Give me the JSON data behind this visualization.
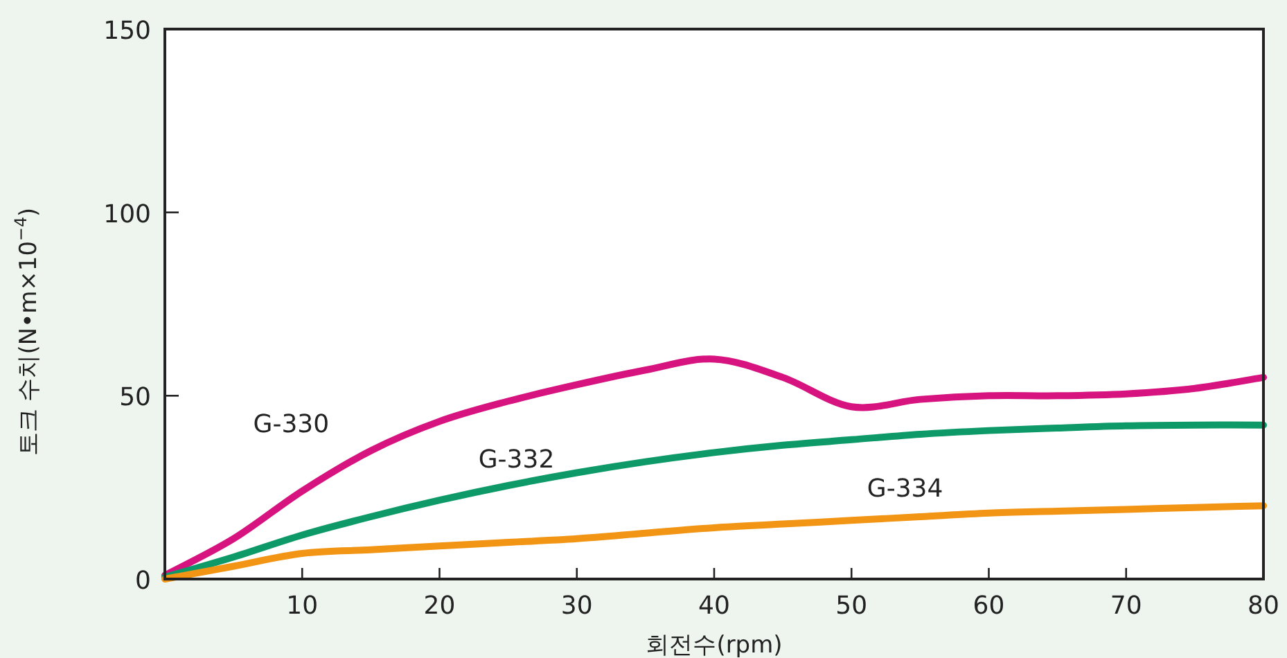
{
  "chart_data": {
    "type": "line",
    "xlabel": "회전수(rpm)",
    "ylabel": "토크 수치(N•m×10$^{−4}$)",
    "x": [
      0,
      5,
      10,
      15,
      20,
      25,
      30,
      35,
      40,
      45,
      50,
      55,
      60,
      65,
      70,
      75,
      80
    ],
    "xlim": [
      0,
      80
    ],
    "xticks": [
      10,
      20,
      30,
      40,
      50,
      60,
      70,
      80
    ],
    "ylim": [
      0,
      150
    ],
    "yticks": [
      0,
      50,
      100,
      150
    ],
    "grid": false,
    "legend": false,
    "marker": "none",
    "line_style": "solid",
    "series": [
      {
        "name": "G-330",
        "color": "#d6137f",
        "values": [
          1,
          11,
          24,
          35,
          43,
          48.5,
          53,
          57,
          60,
          55,
          47,
          49,
          50,
          50,
          50.5,
          52,
          55
        ]
      },
      {
        "name": "G-332",
        "color": "#0d9a68",
        "values": [
          0.5,
          6,
          12,
          17,
          21.5,
          25.5,
          29,
          32,
          34.5,
          36.5,
          38,
          39.5,
          40.5,
          41.2,
          41.8,
          42,
          42
        ]
      },
      {
        "name": "G-334",
        "color": "#f29414",
        "values": [
          0,
          3.5,
          7,
          8,
          9,
          10,
          11,
          12.5,
          14,
          15,
          16,
          17,
          18,
          18.5,
          19,
          19.5,
          20
        ]
      }
    ]
  }
}
